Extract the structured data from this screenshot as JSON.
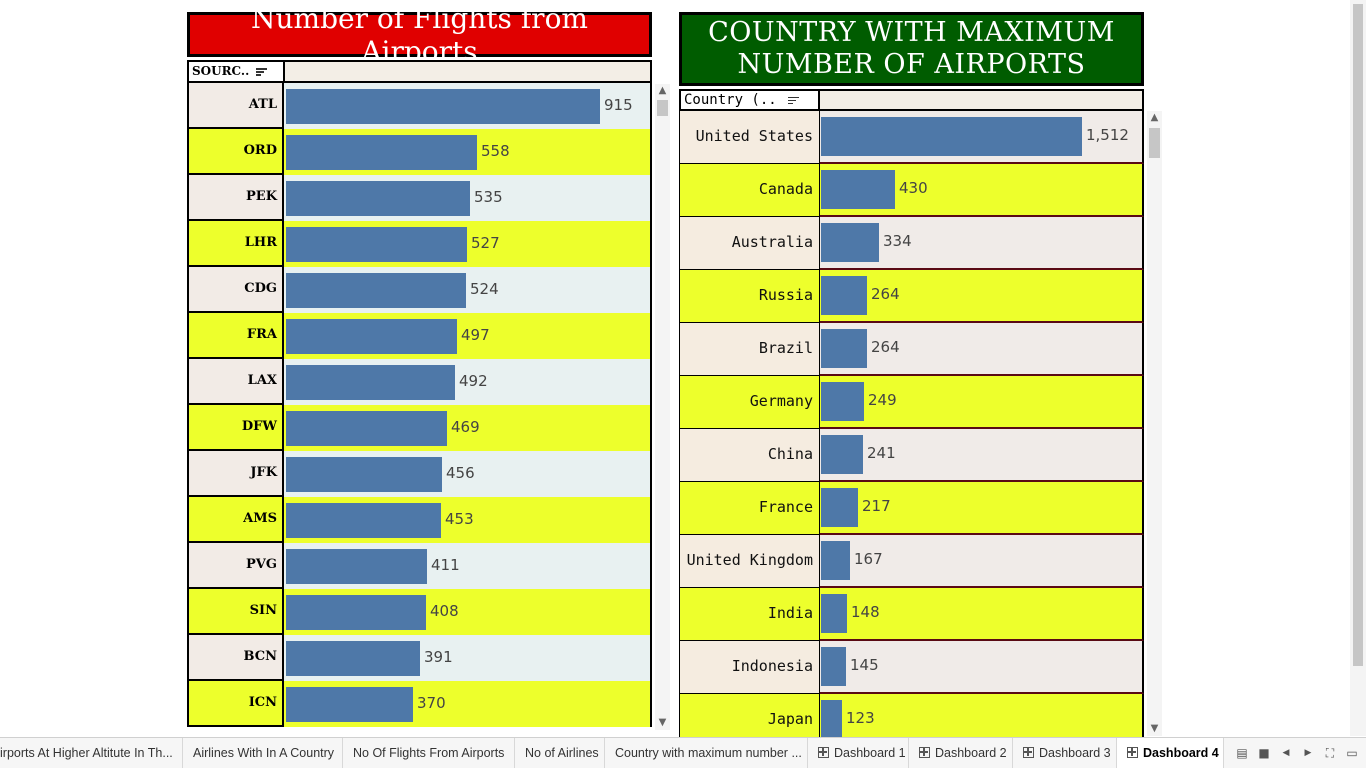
{
  "left_panel": {
    "title": "Number of Flights from Airports",
    "header_label": "SOURC..",
    "max_value": 915,
    "rows": [
      {
        "label": "ATL",
        "value": 915,
        "display": "915"
      },
      {
        "label": "ORD",
        "value": 558,
        "display": "558"
      },
      {
        "label": "PEK",
        "value": 535,
        "display": "535"
      },
      {
        "label": "LHR",
        "value": 527,
        "display": "527"
      },
      {
        "label": "CDG",
        "value": 524,
        "display": "524"
      },
      {
        "label": "FRA",
        "value": 497,
        "display": "497"
      },
      {
        "label": "LAX",
        "value": 492,
        "display": "492"
      },
      {
        "label": "DFW",
        "value": 469,
        "display": "469"
      },
      {
        "label": "JFK",
        "value": 456,
        "display": "456"
      },
      {
        "label": "AMS",
        "value": 453,
        "display": "453"
      },
      {
        "label": "PVG",
        "value": 411,
        "display": "411"
      },
      {
        "label": "SIN",
        "value": 408,
        "display": "408"
      },
      {
        "label": "BCN",
        "value": 391,
        "display": "391"
      },
      {
        "label": "ICN",
        "value": 370,
        "display": "370"
      }
    ]
  },
  "right_panel": {
    "title_line1": "COUNTRY WITH MAXIMUM",
    "title_line2": "NUMBER OF AIRPORTS",
    "header_label": "Country (..",
    "max_value": 1512,
    "rows": [
      {
        "label": "United States",
        "value": 1512,
        "display": "1,512"
      },
      {
        "label": "Canada",
        "value": 430,
        "display": "430"
      },
      {
        "label": "Australia",
        "value": 334,
        "display": "334"
      },
      {
        "label": "Russia",
        "value": 264,
        "display": "264"
      },
      {
        "label": "Brazil",
        "value": 264,
        "display": "264"
      },
      {
        "label": "Germany",
        "value": 249,
        "display": "249"
      },
      {
        "label": "China",
        "value": 241,
        "display": "241"
      },
      {
        "label": "France",
        "value": 217,
        "display": "217"
      },
      {
        "label": "United Kingdom",
        "value": 167,
        "display": "167"
      },
      {
        "label": "India",
        "value": 148,
        "display": "148"
      },
      {
        "label": "Indonesia",
        "value": 145,
        "display": "145"
      },
      {
        "label": "Japan",
        "value": 123,
        "display": "123"
      }
    ]
  },
  "chart_data": [
    {
      "type": "bar",
      "title": "Number of Flights from Airports",
      "xlabel": "",
      "ylabel": "SOURC..",
      "categories": [
        "ATL",
        "ORD",
        "PEK",
        "LHR",
        "CDG",
        "FRA",
        "LAX",
        "DFW",
        "JFK",
        "AMS",
        "PVG",
        "SIN",
        "BCN",
        "ICN"
      ],
      "values": [
        915,
        558,
        535,
        527,
        524,
        497,
        492,
        469,
        456,
        453,
        411,
        408,
        391,
        370
      ],
      "orientation": "horizontal",
      "xlim": [
        0,
        1100
      ],
      "grid": false
    },
    {
      "type": "bar",
      "title": "COUNTRY WITH MAXIMUM NUMBER OF AIRPORTS",
      "xlabel": "",
      "ylabel": "Country (..",
      "categories": [
        "United States",
        "Canada",
        "Australia",
        "Russia",
        "Brazil",
        "Germany",
        "China",
        "France",
        "United Kingdom",
        "India",
        "Indonesia",
        "Japan"
      ],
      "values": [
        1512,
        430,
        334,
        264,
        264,
        249,
        241,
        217,
        167,
        148,
        145,
        123
      ],
      "orientation": "horizontal",
      "xlim": [
        0,
        1870
      ],
      "grid": false
    }
  ],
  "tabs": [
    {
      "label": "irports At Higher Altitute In Th...",
      "icon": "",
      "active": false
    },
    {
      "label": "Airlines With In A Country",
      "icon": "",
      "active": false
    },
    {
      "label": "No Of Flights From Airports",
      "icon": "",
      "active": false
    },
    {
      "label": "No of Airlines",
      "icon": "",
      "active": false
    },
    {
      "label": "Country with maximum number ...",
      "icon": "",
      "active": false
    },
    {
      "label": "Dashboard 1",
      "icon": "dashboard-icon",
      "active": false
    },
    {
      "label": "Dashboard 2",
      "icon": "dashboard-icon",
      "active": false
    },
    {
      "label": "Dashboard 3",
      "icon": "dashboard-icon",
      "active": false
    },
    {
      "label": "Dashboard 4",
      "icon": "dashboard-icon",
      "active": true
    }
  ],
  "controls": {
    "sheet_sorter_icon": "▤",
    "filmstrip_icon": "■",
    "prev_icon": "◀",
    "next_icon": "▶",
    "fullscreen_icon": "⛶",
    "presentation_icon": "▭"
  },
  "colors": {
    "bar": "#4e78a8",
    "highlight_row": "#edff2c",
    "left_title_bg": "#e00000",
    "right_title_bg": "#005c00"
  }
}
